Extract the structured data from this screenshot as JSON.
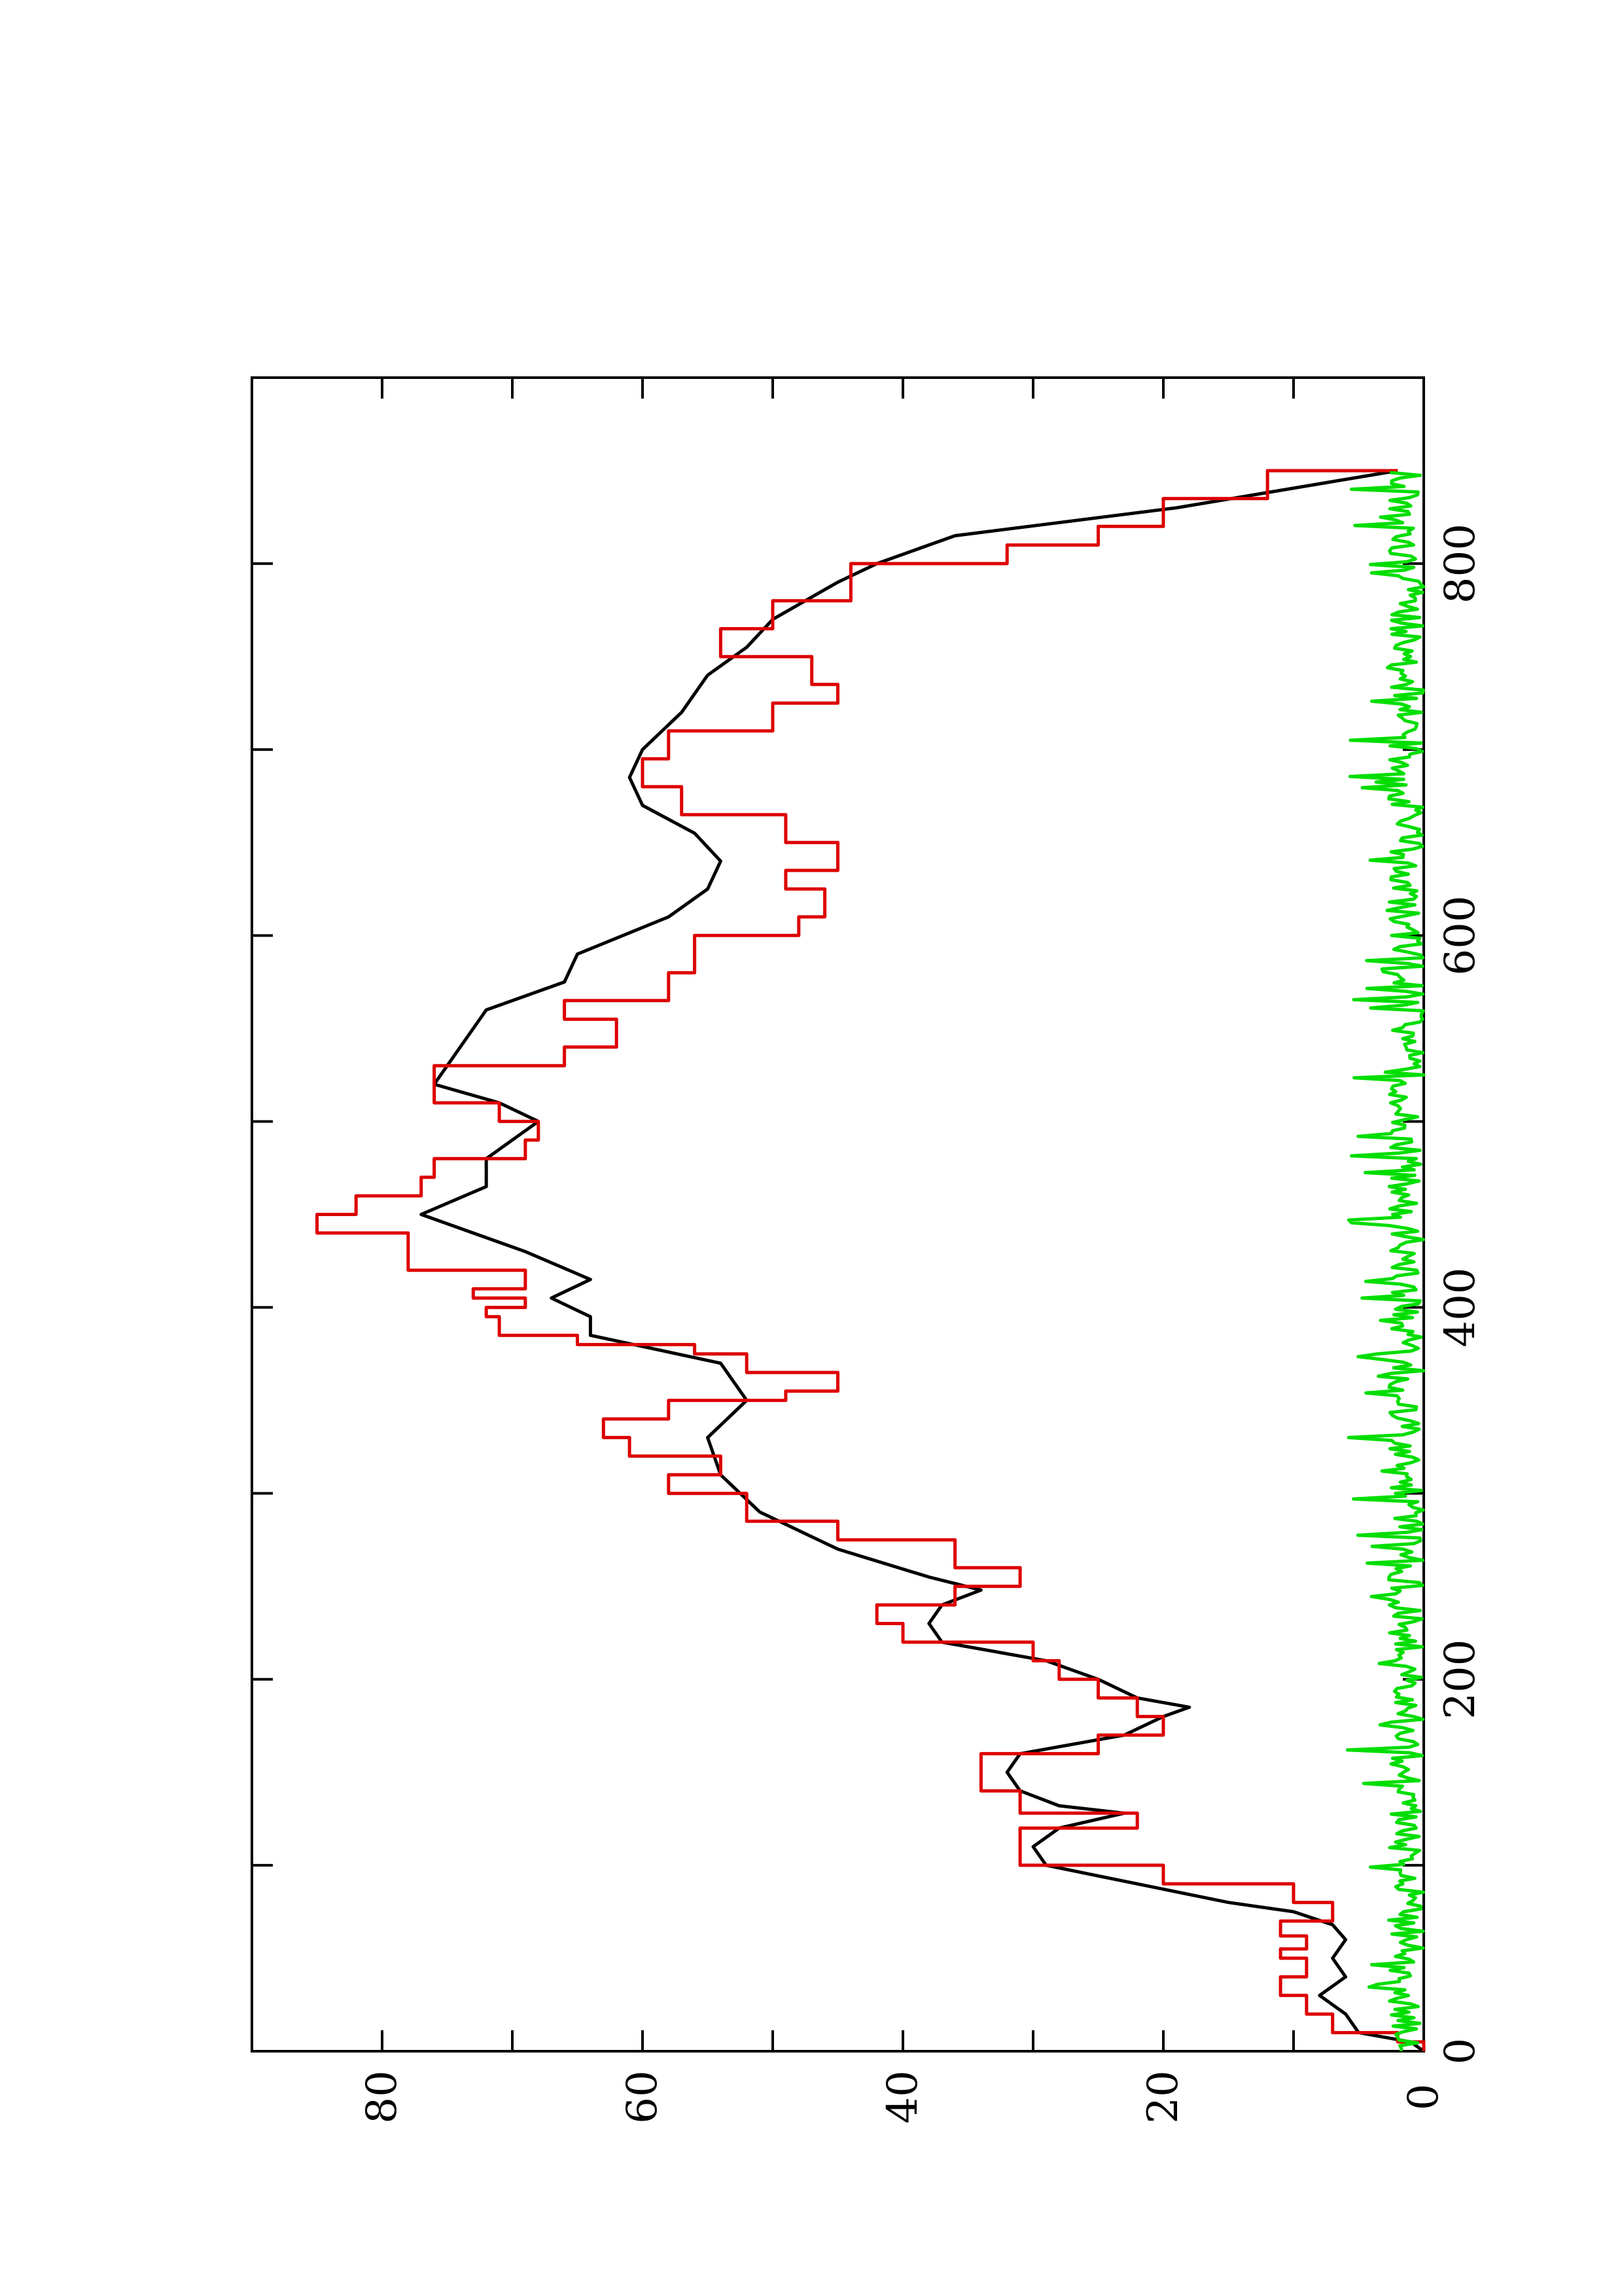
{
  "chart_data": {
    "type": "line",
    "title": "",
    "xlabel": "",
    "ylabel": "",
    "xlim": [
      0,
      900
    ],
    "ylim": [
      0,
      90
    ],
    "x_ticks": [
      0,
      200,
      400,
      600,
      800
    ],
    "x_minor_ticks": [
      100,
      300,
      500,
      700
    ],
    "y_ticks": [
      0,
      20,
      40,
      60,
      80
    ],
    "y_minor_ticks": [
      10,
      30,
      50,
      70
    ],
    "grid": false,
    "legend": "none",
    "series": [
      {
        "color": "#000000",
        "style": "line",
        "x": [
          0,
          5,
          10,
          20,
          30,
          40,
          50,
          60,
          68,
          75,
          80,
          90,
          100,
          110,
          115,
          120,
          128,
          132,
          140,
          150,
          160,
          170,
          180,
          185,
          190,
          200,
          210,
          220,
          230,
          240,
          248,
          255,
          270,
          290,
          310,
          330,
          350,
          370,
          385,
          395,
          405,
          415,
          430,
          450,
          465,
          480,
          500,
          510,
          520,
          540,
          560,
          575,
          590,
          610,
          625,
          640,
          655,
          670,
          685,
          700,
          720,
          740,
          755,
          770,
          790,
          800,
          815,
          830,
          850
        ],
        "y": [
          0,
          1,
          5,
          6,
          8,
          6,
          7,
          6,
          7,
          10,
          15,
          22,
          29,
          30,
          29,
          28,
          23,
          28,
          31,
          32,
          31,
          23,
          20,
          18,
          22,
          25,
          29,
          37,
          38,
          37,
          34,
          38,
          45,
          51,
          54,
          55,
          52,
          54,
          64,
          64,
          67,
          64,
          69,
          77,
          72,
          72,
          68,
          71,
          76,
          74,
          72,
          66,
          65,
          58,
          55,
          54,
          56,
          60,
          61,
          60,
          57,
          55,
          52,
          50,
          45,
          42,
          36,
          19,
          2
        ]
      },
      {
        "color": "#dd0000",
        "style": "steps",
        "x": [
          0,
          5,
          10,
          20,
          30,
          40,
          50,
          55,
          62,
          70,
          80,
          90,
          100,
          110,
          120,
          128,
          140,
          150,
          160,
          170,
          180,
          190,
          200,
          210,
          220,
          230,
          240,
          250,
          260,
          275,
          285,
          300,
          310,
          320,
          330,
          340,
          350,
          355,
          365,
          375,
          380,
          385,
          395,
          400,
          405,
          410,
          420,
          440,
          450,
          460,
          470,
          480,
          490,
          500,
          510,
          520,
          530,
          540,
          555,
          565,
          580,
          600,
          610,
          625,
          635,
          650,
          665,
          680,
          695,
          710,
          725,
          735,
          750,
          765,
          780,
          800,
          810,
          820,
          835,
          850
        ],
        "y": [
          0,
          2,
          7,
          9,
          11,
          9,
          11,
          9,
          11,
          7,
          10,
          20,
          31,
          31,
          22,
          31,
          34,
          34,
          25,
          20,
          22,
          25,
          28,
          30,
          40,
          42,
          36,
          31,
          36,
          45,
          52,
          58,
          54,
          61,
          63,
          58,
          49,
          45,
          52,
          56,
          65,
          71,
          72,
          69,
          73,
          69,
          78,
          85,
          82,
          77,
          76,
          69,
          68,
          71,
          76,
          76,
          66,
          62,
          66,
          58,
          56,
          48,
          46,
          49,
          45,
          49,
          57,
          60,
          58,
          50,
          45,
          47,
          54,
          50,
          44,
          32,
          25,
          20,
          12,
          2
        ]
      },
      {
        "color": "#00dd00",
        "style": "noise",
        "x": [
          0,
          850
        ],
        "y_range": [
          0,
          6
        ]
      }
    ]
  }
}
